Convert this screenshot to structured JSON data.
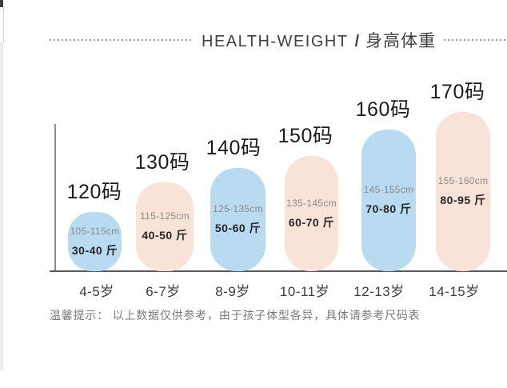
{
  "header": {
    "title_en": "HEALTH-WEIGHT",
    "divider": "/",
    "title_zh": "身高体重"
  },
  "chart_data": {
    "type": "bar",
    "title": "HEALTH-WEIGHT / 身高体重",
    "categories": [
      "4-5岁",
      "6-7岁",
      "8-9岁",
      "10-11岁",
      "12-13岁",
      "14-15岁"
    ],
    "bars": [
      {
        "size": "120码",
        "height_range": "105-115cm",
        "weight_range": "30-40 斤",
        "age": "4-5岁",
        "color": "#b9dbf2"
      },
      {
        "size": "130码",
        "height_range": "115-125cm",
        "weight_range": "40-50 斤",
        "age": "6-7岁",
        "color": "#f9e3d8"
      },
      {
        "size": "140码",
        "height_range": "125-135cm",
        "weight_range": "50-60 斤",
        "age": "8-9岁",
        "color": "#b9dbf2"
      },
      {
        "size": "150码",
        "height_range": "135-145cm",
        "weight_range": "60-70 斤",
        "age": "10-11岁",
        "color": "#f9e3d8"
      },
      {
        "size": "160码",
        "height_range": "145-155cm",
        "weight_range": "70-80 斤",
        "age": "12-13岁",
        "color": "#b9dbf2"
      },
      {
        "size": "170码",
        "height_range": "155-160cm",
        "weight_range": "80-95 斤",
        "age": "14-15岁",
        "color": "#f9e3d8"
      }
    ],
    "colors": {
      "blue_bar": "#b9dbf2",
      "pink_bar": "#f9e3d8",
      "axis": "#5a5a5a",
      "dotted_rule": "#9b9b9b"
    },
    "layout_hints": {
      "grid": "off",
      "legend": "none",
      "bar_shape": "rounded-pill",
      "order": "ascending size left to right"
    }
  },
  "footer": {
    "note": "温馨提示： 以上数据仅供参考，由于孩子体型各异，具体请参考尺码表"
  }
}
